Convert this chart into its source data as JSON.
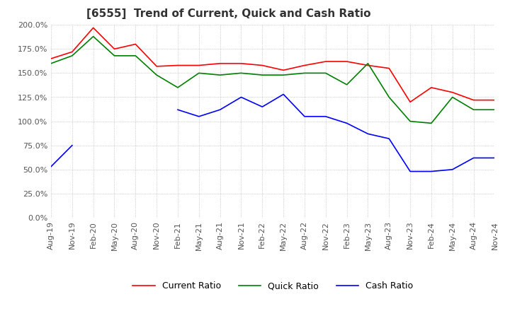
{
  "title": "[6555]  Trend of Current, Quick and Cash Ratio",
  "x_labels": [
    "Aug-19",
    "Nov-19",
    "Feb-20",
    "May-20",
    "Aug-20",
    "Nov-20",
    "Feb-21",
    "May-21",
    "Aug-21",
    "Nov-21",
    "Feb-22",
    "May-22",
    "Aug-22",
    "Nov-22",
    "Feb-23",
    "May-23",
    "Aug-23",
    "Nov-23",
    "Feb-24",
    "May-24",
    "Aug-24",
    "Nov-24"
  ],
  "current_ratio": [
    165,
    172,
    197,
    175,
    180,
    157,
    158,
    158,
    160,
    160,
    158,
    153,
    158,
    162,
    162,
    158,
    155,
    120,
    135,
    130,
    122,
    122
  ],
  "quick_ratio": [
    160,
    168,
    188,
    168,
    168,
    148,
    135,
    150,
    148,
    150,
    148,
    148,
    150,
    150,
    138,
    160,
    125,
    100,
    98,
    125,
    112,
    112
  ],
  "cash_ratio": [
    53,
    75,
    null,
    null,
    null,
    null,
    112,
    105,
    112,
    125,
    115,
    128,
    105,
    105,
    98,
    87,
    82,
    48,
    48,
    50,
    62,
    62
  ],
  "ylim": [
    0,
    200
  ],
  "yticks": [
    0,
    25,
    50,
    75,
    100,
    125,
    150,
    175,
    200
  ],
  "background_color": "#ffffff",
  "grid_color": "#aaaaaa",
  "current_color": "#ff0000",
  "quick_color": "#008000",
  "cash_color": "#0000ff",
  "title_fontsize": 11,
  "tick_fontsize": 8,
  "legend_fontsize": 9
}
